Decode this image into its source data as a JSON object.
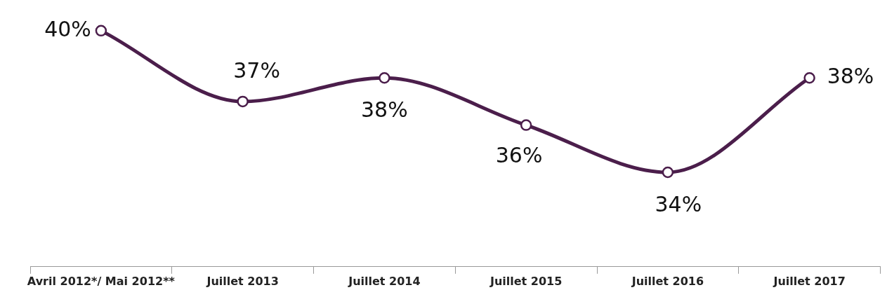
{
  "chart_data": {
    "type": "line",
    "categories": [
      "Avril 2012*/ Mai 2012**",
      "Juillet 2013",
      "Juillet 2014",
      "Juillet 2015",
      "Juillet 2016",
      "Juillet 2017"
    ],
    "values": [
      40,
      37,
      38,
      36,
      34,
      38
    ],
    "color": "#4b1e4b",
    "tick_labels": "x",
    "data_labels": true,
    "value_labels": [
      "40%",
      "37%",
      "38%",
      "36%",
      "34%",
      "38%"
    ],
    "marker": "circle",
    "line_style": "solid",
    "grid": false,
    "legend": false
  }
}
